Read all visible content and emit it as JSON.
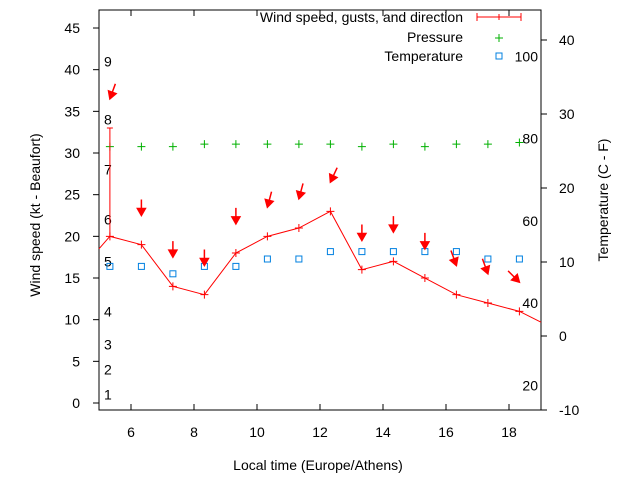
{
  "chart_data": {
    "type": "line",
    "xlabel": "Local time (Europe/Athens)",
    "ylabel_left": "Wind speed (kt - Beaufort)",
    "ylabel_right": "Temperature (C - F)",
    "xlim": [
      5,
      19
    ],
    "ylim_left": [
      -1,
      48
    ],
    "ylim_right": [
      -10,
      45
    ],
    "x_ticks": [
      6,
      8,
      10,
      12,
      14,
      16,
      18
    ],
    "y_left_ticks": [
      0,
      5,
      10,
      15,
      20,
      25,
      30,
      35,
      40,
      45
    ],
    "y_right_ticks": [
      -10,
      0,
      10,
      20,
      30,
      40
    ],
    "beaufort_labels": [
      {
        "label": "1",
        "kt": 1
      },
      {
        "label": "2",
        "kt": 4
      },
      {
        "label": "3",
        "kt": 7
      },
      {
        "label": "4",
        "kt": 11
      },
      {
        "label": "5",
        "kt": 17
      },
      {
        "label": "6",
        "kt": 22
      },
      {
        "label": "7",
        "kt": 28
      },
      {
        "label": "8",
        "kt": 34
      },
      {
        "label": "9",
        "kt": 41
      }
    ],
    "fahrenheit_labels": [
      {
        "label": "20",
        "f": 20
      },
      {
        "label": "40",
        "f": 40
      },
      {
        "label": "60",
        "f": 60
      },
      {
        "label": "80",
        "f": 80
      },
      {
        "label": "100",
        "f": 100
      }
    ],
    "legend": {
      "placement": "top-right",
      "entries": [
        "Wind speed, gusts, and direction",
        "Pressure",
        "Temperature"
      ]
    },
    "x": [
      5.33,
      6.33,
      7.33,
      8.33,
      9.33,
      10.33,
      11.33,
      12.33,
      13.33,
      14.33,
      15.33,
      16.33,
      17.33,
      18.33
    ],
    "series": [
      {
        "name": "Wind speed, gusts, and direction",
        "color": "#ff0000",
        "axis": "left",
        "values": [
          20,
          19,
          14,
          13,
          18,
          20,
          21,
          23,
          16,
          17,
          15,
          13,
          12,
          11
        ],
        "gusts": [
          33,
          null,
          null,
          null,
          null,
          null,
          null,
          null,
          null,
          null,
          null,
          null,
          null,
          null
        ],
        "direction_deg": [
          20,
          0,
          0,
          0,
          0,
          15,
          15,
          25,
          0,
          0,
          0,
          340,
          340,
          315
        ],
        "line_extends_left": 18.5,
        "line_extends_right": 9.7
      },
      {
        "name": "Pressure",
        "color": "#00b000",
        "axis": "left",
        "values": [
          31.0,
          31.0,
          31.0,
          31.3,
          31.3,
          31.3,
          31.3,
          31.3,
          31.0,
          31.3,
          31.0,
          31.3,
          31.3,
          31.5
        ]
      },
      {
        "name": "Temperature",
        "color": "#0080e0",
        "axis": "right",
        "values": [
          9,
          9,
          8,
          9,
          9,
          10,
          10,
          11,
          11,
          11,
          11,
          11,
          10,
          10
        ]
      }
    ]
  }
}
